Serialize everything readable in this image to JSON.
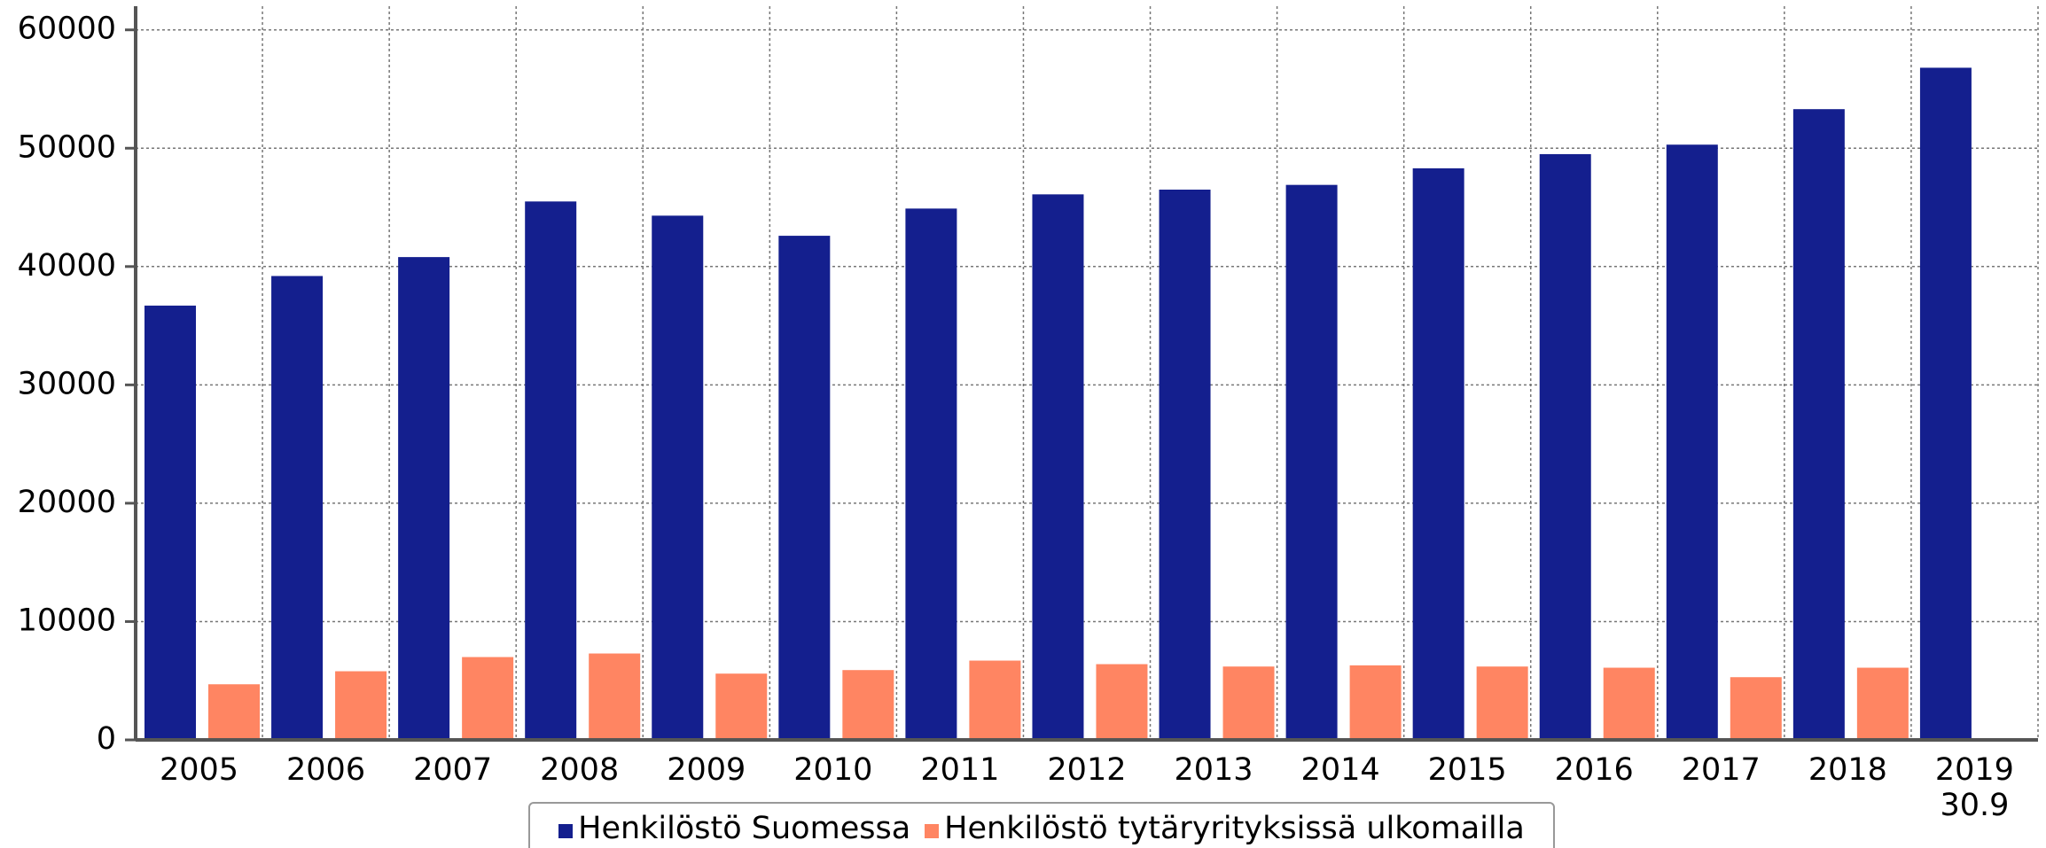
{
  "chart_data": {
    "type": "bar",
    "categories": [
      "2005",
      "2006",
      "2007",
      "2008",
      "2009",
      "2010",
      "2011",
      "2012",
      "2013",
      "2014",
      "2015",
      "2016",
      "2017",
      "2018",
      "2019\n30.9"
    ],
    "series": [
      {
        "name": "Henkilöstö Suomessa",
        "color": "#141f8e",
        "values": [
          36700,
          39200,
          40800,
          45500,
          44300,
          42600,
          44900,
          46100,
          46500,
          46900,
          48300,
          49500,
          50300,
          53300,
          56800
        ]
      },
      {
        "name": "Henkilöstö tytäryrityksissä ulkomailla",
        "color": "#ff8562",
        "values": [
          4700,
          5800,
          7000,
          7300,
          5600,
          5900,
          6700,
          6400,
          6200,
          6300,
          6200,
          6100,
          5300,
          6100,
          null
        ]
      }
    ],
    "ylim": [
      0,
      62000
    ],
    "yticks": [
      0,
      10000,
      20000,
      30000,
      40000,
      50000,
      60000
    ],
    "grid": true,
    "legend": "bottom"
  }
}
